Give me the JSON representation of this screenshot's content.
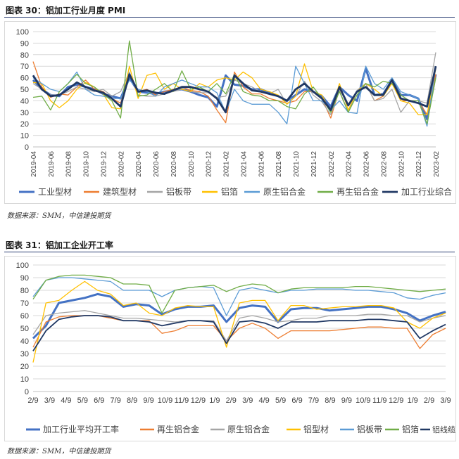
{
  "chart_data": [
    {
      "type": "line",
      "title": "图表 30：铝加工行业月度 PMI",
      "source": "数据来源：SMM，中信建投期货",
      "ylim": [
        0,
        100
      ],
      "yticks": [
        "0",
        "10",
        "20",
        "30",
        "40",
        "50",
        "60",
        "70",
        "80",
        "90",
        "100"
      ],
      "x_tick_labels": [
        "2019-04",
        "2019-06",
        "2019-08",
        "2019-10",
        "2019-12",
        "2020-02",
        "2020-04",
        "2020-06",
        "2020-08",
        "2020-10",
        "2020-12",
        "2021-02",
        "2021-04",
        "2021-06",
        "2021-08",
        "2021-10",
        "2021-12",
        "2022-02",
        "2022-04",
        "2022-06",
        "2022-08",
        "2022-10",
        "2022-12",
        "2023-02"
      ],
      "x": [
        "2019-04",
        "2019-05",
        "2019-06",
        "2019-07",
        "2019-08",
        "2019-09",
        "2019-10",
        "2019-11",
        "2019-12",
        "2020-01",
        "2020-02",
        "2020-03",
        "2020-04",
        "2020-05",
        "2020-06",
        "2020-07",
        "2020-08",
        "2020-09",
        "2020-10",
        "2020-11",
        "2020-12",
        "2021-01",
        "2021-02",
        "2021-03",
        "2021-04",
        "2021-05",
        "2021-06",
        "2021-07",
        "2021-08",
        "2021-09",
        "2021-10",
        "2021-11",
        "2021-12",
        "2022-01",
        "2022-02",
        "2022-03",
        "2022-04",
        "2022-05",
        "2022-06",
        "2022-07",
        "2022-08",
        "2022-09",
        "2022-10",
        "2022-11",
        "2022-12",
        "2023-01",
        "2023-02"
      ],
      "series": [
        {
          "name": "工业型材",
          "color": "#4472c4",
          "width": 3,
          "values": [
            58,
            50,
            45,
            44,
            52,
            54,
            52,
            50,
            46,
            44,
            42,
            60,
            48,
            47,
            46,
            48,
            49,
            50,
            48,
            45,
            43,
            35,
            62,
            54,
            53,
            50,
            50,
            47,
            44,
            40,
            45,
            50,
            48,
            44,
            35,
            52,
            45,
            40,
            68,
            45,
            46,
            58,
            45,
            45,
            42,
            24,
            63
          ]
        },
        {
          "name": "建筑型材",
          "color": "#ed7d31",
          "width": 1.3,
          "values": [
            74,
            52,
            43,
            46,
            45,
            52,
            58,
            50,
            48,
            42,
            38,
            62,
            48,
            50,
            45,
            48,
            50,
            52,
            49,
            48,
            44,
            32,
            21,
            65,
            52,
            46,
            46,
            42,
            40,
            38,
            40,
            48,
            48,
            42,
            25,
            50,
            37,
            48,
            55,
            40,
            44,
            57,
            40,
            40,
            40,
            28,
            63
          ]
        },
        {
          "name": "铝板带",
          "color": "#a5a5a5",
          "width": 1.3,
          "values": [
            55,
            50,
            45,
            45,
            48,
            52,
            50,
            48,
            50,
            44,
            48,
            65,
            45,
            44,
            44,
            46,
            48,
            50,
            48,
            47,
            47,
            43,
            44,
            58,
            55,
            52,
            48,
            46,
            50,
            37,
            44,
            57,
            45,
            39,
            28,
            49,
            30,
            49,
            55,
            40,
            42,
            50,
            30,
            40,
            40,
            38,
            82
          ]
        },
        {
          "name": "铝箔",
          "color": "#ffc000",
          "width": 1.3,
          "values": [
            56,
            55,
            40,
            34,
            40,
            50,
            56,
            52,
            46,
            34,
            33,
            70,
            42,
            62,
            64,
            50,
            55,
            50,
            48,
            55,
            52,
            58,
            60,
            58,
            65,
            60,
            50,
            48,
            45,
            37,
            44,
            72,
            48,
            45,
            30,
            55,
            32,
            48,
            55,
            50,
            44,
            55,
            40,
            38,
            28,
            28,
            68
          ]
        },
        {
          "name": "原生铝合金",
          "color": "#5b9bd5",
          "width": 1.3,
          "values": [
            60,
            55,
            50,
            48,
            55,
            65,
            50,
            45,
            44,
            42,
            42,
            58,
            50,
            48,
            44,
            52,
            55,
            58,
            55,
            52,
            52,
            47,
            30,
            50,
            40,
            37,
            37,
            37,
            30,
            20,
            70,
            55,
            40,
            40,
            32,
            40,
            30,
            29,
            70,
            55,
            50,
            60,
            48,
            45,
            42,
            18,
            70
          ]
        },
        {
          "name": "再生铝合金",
          "color": "#70ad47",
          "width": 1.3,
          "values": [
            43,
            44,
            32,
            48,
            55,
            63,
            55,
            52,
            46,
            40,
            25,
            92,
            44,
            45,
            50,
            55,
            48,
            66,
            50,
            52,
            48,
            55,
            46,
            63,
            48,
            45,
            44,
            40,
            40,
            35,
            33,
            46,
            52,
            42,
            30,
            48,
            30,
            45,
            55,
            52,
            57,
            55,
            45,
            40,
            40,
            20,
            60
          ]
        },
        {
          "name": "加工行业综合",
          "color": "#203864",
          "width": 2.8,
          "values": [
            62,
            50,
            44,
            45,
            50,
            56,
            52,
            49,
            47,
            42,
            35,
            63,
            48,
            49,
            47,
            46,
            49,
            52,
            52,
            50,
            48,
            42,
            30,
            62,
            55,
            49,
            48,
            46,
            44,
            40,
            50,
            55,
            48,
            42,
            32,
            52,
            36,
            48,
            52,
            45,
            45,
            58,
            42,
            40,
            38,
            35,
            70
          ]
        }
      ]
    },
    {
      "type": "line",
      "title": "图表 31：铝加工企业开工率",
      "source": "数据来源：SMM，中信建投期货",
      "ylim": [
        0,
        100
      ],
      "yticks": [
        "0",
        "10",
        "20",
        "30",
        "40",
        "50",
        "60",
        "70",
        "80",
        "90",
        "100"
      ],
      "x_tick_labels": [
        "2/9",
        "3/9",
        "4/9",
        "5/9",
        "6/9",
        "7/9",
        "8/9",
        "9/9",
        "10/9",
        "11/9",
        "12/9",
        "1/9",
        "2/9",
        "3/9",
        "4/9",
        "5/9",
        "6/9",
        "7/9",
        "8/9",
        "9/9",
        "10/9",
        "11/9",
        "12/9",
        "1/9",
        "2/9",
        "3/9"
      ],
      "series": [
        {
          "name": "加工行业平均开工率",
          "color": "#4472c4",
          "width": 3,
          "values": [
            42,
            52,
            70,
            72,
            74,
            77,
            75,
            67,
            69,
            68,
            61,
            65,
            67,
            67,
            68,
            55,
            66,
            68,
            67,
            55,
            65,
            66,
            66,
            64,
            65,
            66,
            67,
            67,
            65,
            62,
            56,
            60,
            63
          ]
        },
        {
          "name": "再生铝合金",
          "color": "#ed7d31",
          "width": 1.3,
          "values": [
            35,
            55,
            59,
            60,
            60,
            60,
            58,
            56,
            56,
            56,
            46,
            48,
            52,
            52,
            52,
            40,
            50,
            54,
            50,
            42,
            48,
            48,
            48,
            48,
            49,
            50,
            51,
            51,
            50,
            50,
            34,
            45,
            50
          ]
        },
        {
          "name": "原生铝合金",
          "color": "#a5a5a5",
          "width": 1.3,
          "values": [
            45,
            60,
            62,
            63,
            64,
            62,
            60,
            58,
            58,
            57,
            56,
            55,
            56,
            56,
            56,
            40,
            58,
            60,
            58,
            55,
            56,
            58,
            58,
            60,
            60,
            60,
            61,
            61,
            60,
            60,
            55,
            58,
            60
          ]
        },
        {
          "name": "铝型材",
          "color": "#ffc000",
          "width": 1.3,
          "values": [
            23,
            70,
            72,
            80,
            87,
            80,
            77,
            68,
            70,
            62,
            60,
            66,
            68,
            67,
            67,
            35,
            70,
            72,
            72,
            56,
            68,
            68,
            65,
            66,
            67,
            67,
            68,
            68,
            66,
            55,
            50,
            58,
            62
          ]
        },
        {
          "name": "铝板带",
          "color": "#5b9bd5",
          "width": 1.3,
          "values": [
            75,
            88,
            90,
            90,
            89,
            88,
            87,
            80,
            80,
            80,
            75,
            80,
            82,
            83,
            82,
            60,
            80,
            82,
            80,
            78,
            80,
            80,
            81,
            81,
            81,
            80,
            80,
            79,
            78,
            74,
            73,
            76,
            78
          ]
        },
        {
          "name": "铝箔",
          "color": "#70ad47",
          "width": 1.3,
          "values": [
            73,
            88,
            91,
            92,
            92,
            91,
            90,
            85,
            85,
            84,
            62,
            80,
            82,
            83,
            84,
            79,
            83,
            85,
            84,
            78,
            81,
            82,
            82,
            82,
            82,
            83,
            83,
            82,
            81,
            80,
            79,
            80,
            81
          ]
        },
        {
          "name": "铝线缆",
          "color": "#203864",
          "width": 1.8,
          "values": [
            32,
            48,
            57,
            59,
            60,
            60,
            59,
            56,
            56,
            55,
            52,
            54,
            56,
            56,
            55,
            38,
            55,
            56,
            54,
            50,
            55,
            55,
            55,
            56,
            56,
            56,
            57,
            57,
            56,
            55,
            42,
            48,
            53
          ]
        }
      ]
    }
  ]
}
